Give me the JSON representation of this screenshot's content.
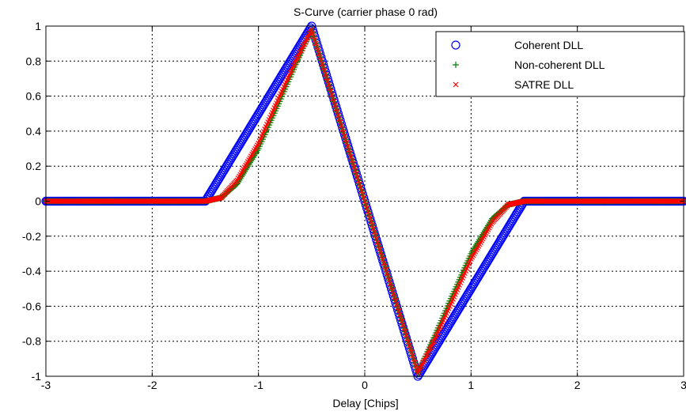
{
  "chart_data": {
    "type": "scatter",
    "title": "S-Curve (carrier phase 0 rad)",
    "xlabel": "Delay [Chips]",
    "ylabel": "",
    "xlim": [
      -3,
      3
    ],
    "ylim": [
      -1,
      1
    ],
    "xticks": [
      -3,
      -2,
      -1,
      0,
      1,
      2,
      3
    ],
    "yticks": [
      -1,
      -0.8,
      -0.6,
      -0.4,
      -0.2,
      0,
      0.2,
      0.4,
      0.6,
      0.8,
      1
    ],
    "xtick_labels": [
      "-3",
      "-2",
      "-1",
      "0",
      "1",
      "2",
      "3"
    ],
    "ytick_labels": [
      "-1",
      "-0.8",
      "-0.6",
      "-0.4",
      "-0.2",
      "0",
      "0.2",
      "0.4",
      "0.6",
      "0.8",
      "1"
    ],
    "grid": true,
    "legend_position": "top-right",
    "series": [
      {
        "name": "Coherent DLL",
        "marker": "circle",
        "color": "#0000ff",
        "x": [
          -3.0,
          -2.5,
          -2.0,
          -1.5,
          -1.25,
          -1.0,
          -0.75,
          -0.5,
          -0.25,
          0.0,
          0.25,
          0.5,
          0.75,
          1.0,
          1.25,
          1.5,
          2.0,
          2.5,
          3.0
        ],
        "y": [
          0,
          0,
          0,
          0,
          0.25,
          0.5,
          0.75,
          1.0,
          0.5,
          0.0,
          -0.5,
          -1.0,
          -0.75,
          -0.5,
          -0.25,
          0,
          0,
          0,
          0
        ]
      },
      {
        "name": "Non-coherent DLL",
        "marker": "plus",
        "color": "#008000",
        "x": [
          -3.0,
          -2.5,
          -2.0,
          -1.5,
          -1.35,
          -1.2,
          -1.0,
          -0.8,
          -0.65,
          -0.5,
          -0.25,
          0.0,
          0.25,
          0.5,
          0.65,
          0.8,
          1.0,
          1.2,
          1.35,
          1.5,
          2.0,
          2.5,
          3.0
        ],
        "y": [
          0,
          0,
          0,
          0,
          0.02,
          0.1,
          0.3,
          0.57,
          0.78,
          0.98,
          0.49,
          0.0,
          -0.49,
          -0.98,
          -0.78,
          -0.57,
          -0.3,
          -0.1,
          -0.02,
          0,
          0,
          0,
          0
        ]
      },
      {
        "name": "SATRE DLL",
        "marker": "x",
        "color": "#ff0000",
        "x": [
          -3.0,
          -2.5,
          -2.0,
          -1.5,
          -1.35,
          -1.2,
          -1.0,
          -0.8,
          -0.65,
          -0.5,
          -0.25,
          0.0,
          0.25,
          0.5,
          0.65,
          0.8,
          1.0,
          1.2,
          1.35,
          1.5,
          2.0,
          2.5,
          3.0
        ],
        "y": [
          0,
          0,
          0,
          0,
          0.02,
          0.12,
          0.33,
          0.6,
          0.8,
          0.98,
          0.49,
          0.0,
          -0.49,
          -0.98,
          -0.8,
          -0.6,
          -0.33,
          -0.12,
          -0.02,
          0,
          0,
          0,
          0
        ]
      }
    ]
  }
}
